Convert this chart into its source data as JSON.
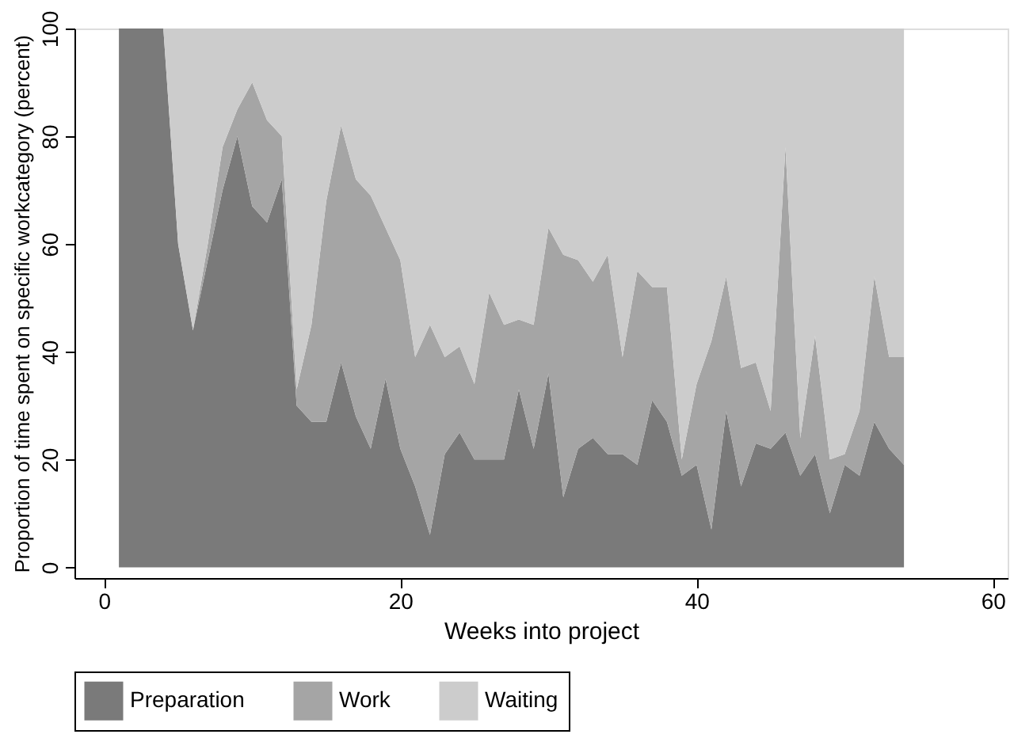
{
  "chart_data": {
    "type": "area",
    "stacked": true,
    "xlabel": "Weeks into project",
    "ylabel": "Proportion of time spent on specific workcategory (percent)",
    "x": [
      1,
      2,
      3,
      4,
      5,
      6,
      7,
      8,
      9,
      10,
      11,
      12,
      13,
      14,
      15,
      16,
      17,
      18,
      19,
      20,
      21,
      22,
      23,
      24,
      25,
      26,
      27,
      28,
      29,
      30,
      31,
      32,
      33,
      34,
      35,
      36,
      37,
      38,
      39,
      40,
      41,
      42,
      43,
      44,
      45,
      46,
      47,
      48,
      49,
      50,
      51,
      52,
      53,
      54
    ],
    "series": [
      {
        "name": "Preparation",
        "color": "#7a7a7a",
        "values": [
          100,
          100,
          100,
          100,
          60,
          44,
          57,
          70,
          80,
          67,
          64,
          72,
          30,
          27,
          27,
          38,
          28,
          22,
          35,
          22,
          15,
          6,
          21,
          25,
          20,
          20,
          20,
          33,
          22,
          36,
          13,
          22,
          24,
          21,
          21,
          19,
          31,
          27,
          17,
          19,
          7,
          29,
          15,
          23,
          22,
          25,
          17,
          21,
          10,
          19,
          17,
          27,
          22,
          19
        ]
      },
      {
        "name": "Work",
        "color": "#a5a5a5",
        "values": [
          0,
          0,
          0,
          0,
          0,
          0,
          3,
          8,
          5,
          23,
          19,
          8,
          3,
          18,
          41,
          44,
          44,
          47,
          28,
          35,
          24,
          39,
          18,
          16,
          14,
          31,
          25,
          13,
          23,
          27,
          45,
          35,
          29,
          37,
          18,
          36,
          21,
          25,
          3,
          15,
          35,
          25,
          22,
          15,
          7,
          53,
          7,
          22,
          10,
          2,
          12,
          27,
          17,
          20
        ]
      },
      {
        "name": "Waiting",
        "color": "#cccccc",
        "values": [
          0,
          0,
          0,
          0,
          40,
          56,
          40,
          22,
          15,
          10,
          17,
          20,
          67,
          55,
          32,
          18,
          28,
          31,
          37,
          43,
          61,
          55,
          61,
          59,
          66,
          49,
          55,
          54,
          55,
          37,
          42,
          43,
          47,
          42,
          61,
          45,
          48,
          48,
          80,
          66,
          58,
          46,
          63,
          62,
          71,
          22,
          76,
          57,
          80,
          79,
          71,
          46,
          61,
          61
        ]
      }
    ],
    "xlim": [
      -2,
      61
    ],
    "xticks": [
      0,
      20,
      40,
      60
    ],
    "ylim": [
      -2,
      100
    ],
    "yticks": [
      0,
      20,
      40,
      60,
      80,
      100
    ],
    "grid": false,
    "legend": "bottom"
  }
}
